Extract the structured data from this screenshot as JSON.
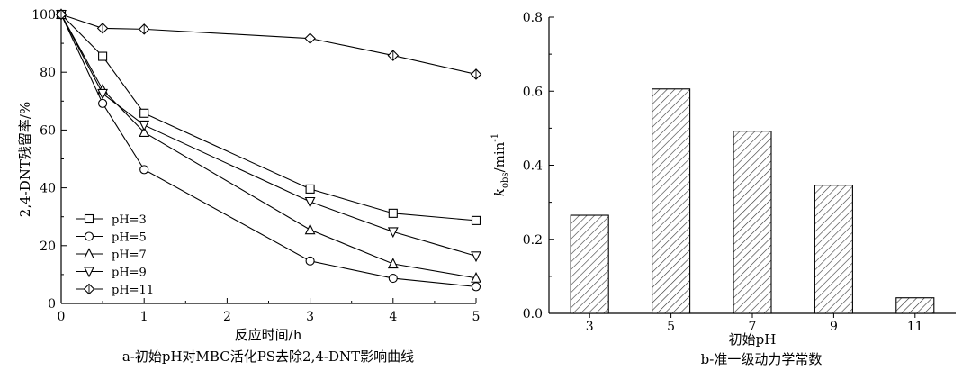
{
  "chart_data": [
    {
      "type": "line",
      "caption": "a-初始pH对MBC活化PS去除2,4-DNT影响曲线",
      "xlabel": "反应时间/h",
      "ylabel": "2,4-DNT残留率/%",
      "xlim": [
        0,
        5
      ],
      "ylim": [
        0,
        100
      ],
      "xticks": [
        0,
        1,
        2,
        3,
        4,
        5
      ],
      "yticks": [
        0,
        20,
        40,
        60,
        80,
        100
      ],
      "grid": false,
      "legend_position": "bottom-left",
      "x": [
        0,
        0.5,
        1,
        3,
        4,
        5
      ],
      "series": [
        {
          "name": "pH=3",
          "marker": "square",
          "values": [
            100,
            85.5,
            65.8,
            39.6,
            31.2,
            28.7
          ]
        },
        {
          "name": "pH=5",
          "marker": "circle",
          "values": [
            100,
            69.2,
            46.3,
            14.7,
            8.7,
            5.8
          ]
        },
        {
          "name": "pH=7",
          "marker": "triangle-up",
          "values": [
            100,
            74.0,
            59.2,
            25.5,
            13.7,
            8.8
          ]
        },
        {
          "name": "pH=9",
          "marker": "triangle-down",
          "values": [
            100,
            72.6,
            61.7,
            35.2,
            24.8,
            16.4
          ]
        },
        {
          "name": "pH=11",
          "marker": "diamond",
          "values": [
            100,
            95.2,
            94.9,
            91.7,
            85.8,
            79.3
          ]
        }
      ]
    },
    {
      "type": "bar",
      "caption": "b-准一级动力学常数",
      "xlabel": "初始pH",
      "ylabel_main": "k",
      "ylabel_sub": "obs",
      "ylabel_unit": "/min",
      "ylabel_exp": "-1",
      "categories": [
        "3",
        "5",
        "7",
        "9",
        "11"
      ],
      "values": [
        0.265,
        0.606,
        0.492,
        0.346,
        0.042
      ],
      "ylim": [
        0,
        0.8
      ],
      "yticks": [
        "0.0",
        "0.2",
        "0.4",
        "0.6",
        "0.8"
      ],
      "grid": false,
      "fill": "hatched"
    }
  ]
}
